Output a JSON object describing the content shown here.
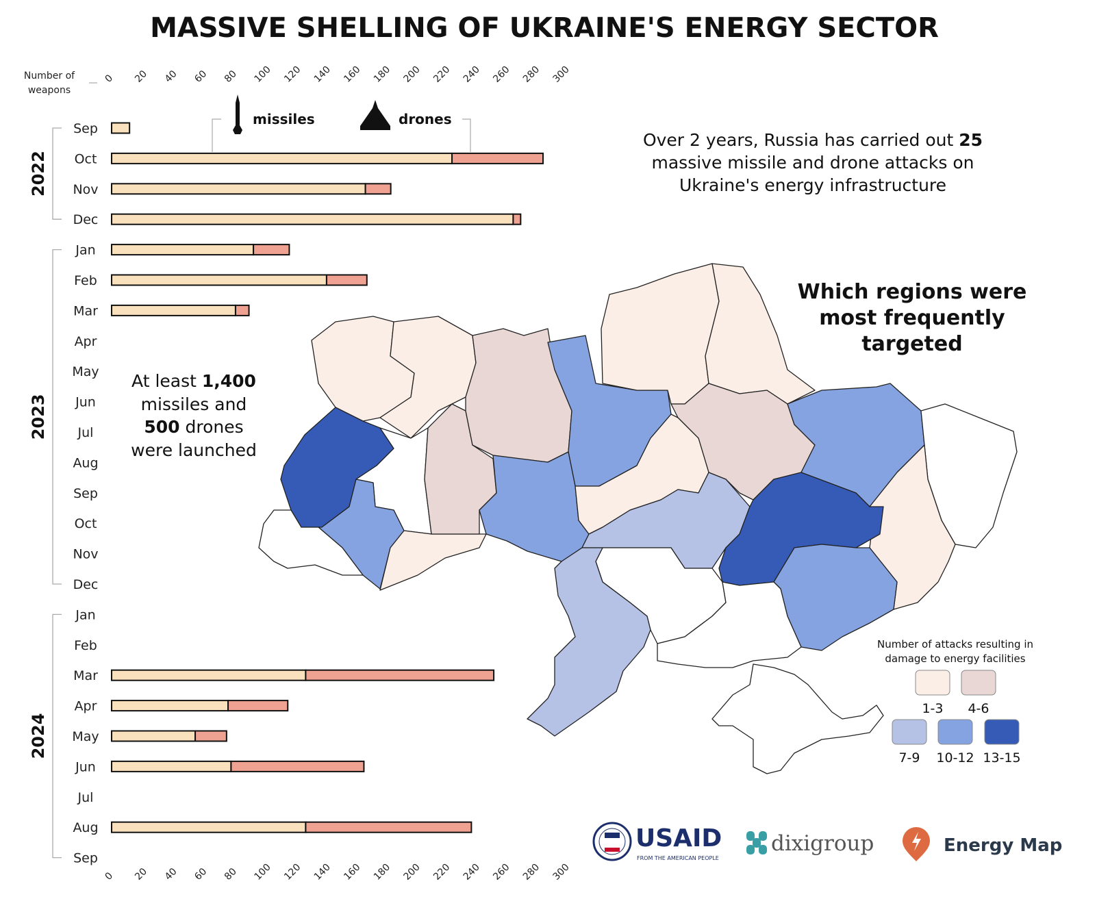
{
  "title": "MASSIVE SHELLING OF UKRAINE'S ENERGY SECTOR",
  "chart_data": [
    {
      "type": "bar",
      "orientation": "horizontal",
      "stacked": true,
      "axis_label": [
        "Number of",
        "weapons"
      ],
      "xlim": [
        0,
        300
      ],
      "ticks": [
        0,
        20,
        40,
        60,
        80,
        100,
        120,
        140,
        160,
        180,
        200,
        220,
        240,
        260,
        280,
        300
      ],
      "years": [
        {
          "label": "2022",
          "months": [
            "Sep",
            "Oct",
            "Nov",
            "Dec"
          ]
        },
        {
          "label": "2023",
          "months": [
            "Jan",
            "Feb",
            "Mar",
            "Apr",
            "May",
            "Jun",
            "Jul",
            "Aug",
            "Sep",
            "Oct",
            "Nov",
            "Dec"
          ]
        },
        {
          "label": "2024",
          "months": [
            "Jan",
            "Feb",
            "Mar",
            "Apr",
            "May",
            "Jun",
            "Jul",
            "Aug",
            "Sep"
          ]
        }
      ],
      "series": [
        {
          "name": "missiles",
          "color": "#f9e1bd",
          "values": [
            12,
            228,
            170,
            269,
            95,
            144,
            83,
            null,
            null,
            null,
            null,
            null,
            null,
            null,
            null,
            null,
            null,
            null,
            130,
            78,
            56,
            80,
            null,
            130,
            null
          ]
        },
        {
          "name": "drones",
          "color": "#efa291",
          "values": [
            0,
            61,
            17,
            5,
            24,
            27,
            9,
            null,
            null,
            null,
            null,
            null,
            null,
            null,
            null,
            null,
            null,
            null,
            126,
            40,
            21,
            89,
            null,
            111,
            null
          ]
        }
      ]
    },
    {
      "type": "choropleth",
      "legend_title": [
        "Number of attacks resulting in",
        "damage to energy facilities"
      ],
      "bins": [
        {
          "label": "1-3",
          "color": "#fbeee6"
        },
        {
          "label": "4-6",
          "color": "#e8d7d5"
        },
        {
          "label": "7-9",
          "color": "#b5c2e6"
        },
        {
          "label": "10-12",
          "color": "#86a3e1"
        },
        {
          "label": "13-15",
          "color": "#355bb6"
        }
      ],
      "region_levels": [
        "1-3",
        "1-3",
        "13-15",
        "none",
        "10-12",
        "none",
        "1-3",
        "4-6",
        "4-6",
        "10-12",
        "10-12",
        "1-3",
        "1-3",
        "4-6",
        "10-12",
        "none",
        "1-3",
        "1-3",
        "7-9",
        "13-15",
        "10-12",
        "none",
        "7-9",
        "none",
        "none"
      ]
    }
  ],
  "legend_weapons": {
    "missiles": "missiles",
    "drones": "drones"
  },
  "callout_top": {
    "line1_pre": "Over 2 years, Russia has carried out ",
    "line1_bold": "25",
    "line2": "massive missile and drone attacks on",
    "line3": "Ukraine's energy infrastructure"
  },
  "callout_left": {
    "line1_pre": "At least ",
    "line1_bold": "1,400",
    "line2": "missiles and",
    "line3_bold": "500",
    "line3_post": " drones",
    "line4": "were launched"
  },
  "map_title": [
    "Which regions were",
    "most frequently",
    "targeted"
  ],
  "logos": {
    "usaid": "USAID",
    "usaid_sub": "FROM THE AMERICAN PEOPLE",
    "dixi": "dixigroup",
    "energy_map": "Energy Map"
  }
}
